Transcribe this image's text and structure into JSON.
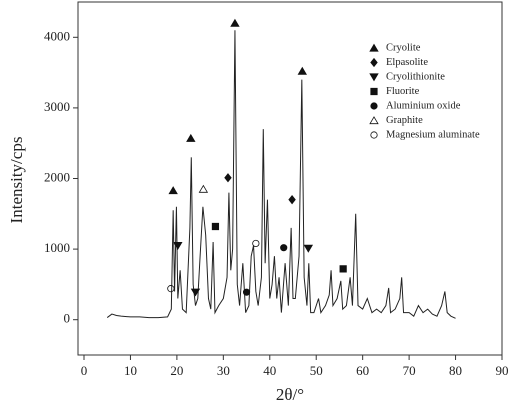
{
  "chart_data": {
    "type": "line",
    "x_label": "2θ/°",
    "y_label": "Intensity/cps",
    "xlim": [
      0,
      90
    ],
    "ylim": [
      -500,
      4500
    ],
    "xticks": [
      0,
      10,
      20,
      30,
      40,
      50,
      60,
      70,
      80,
      90
    ],
    "yticks": [
      0,
      1000,
      2000,
      3000,
      4000
    ],
    "series": [
      {
        "color": "#222222",
        "x": [
          5,
          6,
          7,
          8,
          10,
          12,
          14,
          16,
          18,
          18.8,
          19.2,
          19.5,
          19.9,
          20.2,
          20.7,
          21.2,
          22,
          22.8,
          23.1,
          23.5,
          24,
          24.5,
          25,
          25.6,
          26.2,
          26.8,
          27.3,
          27.8,
          28.2,
          29,
          30,
          30.8,
          31.2,
          31.6,
          32,
          32.5,
          33,
          33.5,
          34.2,
          34.8,
          35.5,
          36,
          36.5,
          37,
          37.5,
          38.2,
          38.6,
          39,
          39.5,
          40,
          40.5,
          41,
          41.5,
          42,
          42.5,
          43.3,
          44,
          44.6,
          45,
          45.5,
          46.3,
          46.9,
          47.4,
          48,
          48.4,
          48.8,
          49.5,
          50.5,
          51,
          52,
          52.8,
          53.2,
          53.6,
          54.5,
          55.3,
          55.7,
          56.5,
          57.3,
          57.8,
          58.5,
          59,
          60,
          61,
          62,
          63,
          64,
          65,
          65.6,
          66,
          67,
          68,
          68.4,
          68.8,
          70,
          71,
          72,
          73,
          74,
          75,
          76,
          77,
          77.7,
          78.2,
          79,
          80
        ],
        "values": [
          30,
          80,
          60,
          50,
          40,
          40,
          30,
          30,
          40,
          150,
          1550,
          400,
          1600,
          300,
          700,
          150,
          100,
          1300,
          2300,
          500,
          200,
          300,
          900,
          1600,
          1200,
          300,
          150,
          1100,
          100,
          200,
          300,
          600,
          1800,
          700,
          1000,
          4100,
          500,
          200,
          800,
          100,
          200,
          900,
          1050,
          400,
          200,
          600,
          2700,
          800,
          1700,
          300,
          500,
          900,
          300,
          600,
          100,
          800,
          200,
          1300,
          300,
          300,
          900,
          3400,
          600,
          200,
          800,
          100,
          100,
          300,
          100,
          200,
          350,
          700,
          200,
          300,
          550,
          150,
          200,
          600,
          200,
          1500,
          200,
          150,
          300,
          100,
          150,
          100,
          200,
          450,
          100,
          150,
          300,
          600,
          100,
          100,
          50,
          200,
          100,
          150,
          80,
          50,
          200,
          400,
          100,
          50,
          20
        ]
      }
    ],
    "phases": [
      {
        "name": "Cryolite",
        "symbol": "triangle",
        "filled": true
      },
      {
        "name": "Elpasolite",
        "symbol": "diamond",
        "filled": true
      },
      {
        "name": "Cryolithionite",
        "symbol": "triangle-down",
        "filled": true
      },
      {
        "name": "Fluorite",
        "symbol": "square",
        "filled": true
      },
      {
        "name": "Aluminium oxide",
        "symbol": "circle",
        "filled": true
      },
      {
        "name": "Graphite",
        "symbol": "triangle",
        "filled": false
      },
      {
        "name": "Magnesium aluminate",
        "symbol": "circle",
        "filled": false
      }
    ],
    "markers": [
      {
        "phase": 0,
        "x": 19.2,
        "y": 1830
      },
      {
        "phase": 0,
        "x": 23,
        "y": 2570
      },
      {
        "phase": 0,
        "x": 32.5,
        "y": 4200
      },
      {
        "phase": 0,
        "x": 47,
        "y": 3520
      },
      {
        "phase": 1,
        "x": 31,
        "y": 2010
      },
      {
        "phase": 1,
        "x": 44.8,
        "y": 1700
      },
      {
        "phase": 2,
        "x": 20.2,
        "y": 1050
      },
      {
        "phase": 2,
        "x": 24,
        "y": 390
      },
      {
        "phase": 2,
        "x": 48.3,
        "y": 1010
      },
      {
        "phase": 3,
        "x": 28.3,
        "y": 1320
      },
      {
        "phase": 3,
        "x": 55.8,
        "y": 720
      },
      {
        "phase": 4,
        "x": 35,
        "y": 390
      },
      {
        "phase": 4,
        "x": 43,
        "y": 1020
      },
      {
        "phase": 5,
        "x": 25.7,
        "y": 1850
      },
      {
        "phase": 6,
        "x": 18.7,
        "y": 440
      },
      {
        "phase": 6,
        "x": 37,
        "y": 1080
      }
    ]
  }
}
